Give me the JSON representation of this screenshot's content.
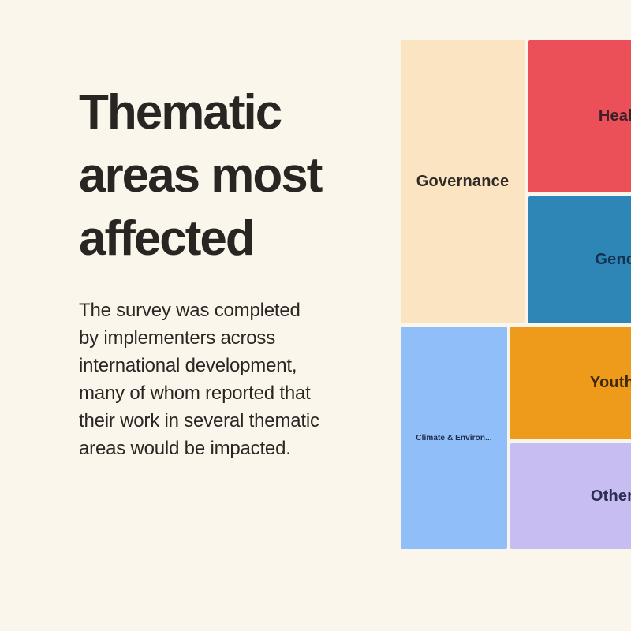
{
  "page": {
    "background_color": "#FAF6EC",
    "text_color": "#292522"
  },
  "intro": {
    "title_lines": [
      "Thematic",
      "areas most",
      "affected"
    ],
    "title_text": "Thematic areas most affected",
    "description_lines": [
      "The survey was completed",
      "by implementers across",
      "international development,",
      "many of whom reported that",
      "their work in several thematic",
      "areas would be impacted."
    ],
    "description_text": "The survey was completed by implementers across international development, many of whom reported that their work in several thematic areas would be impacted."
  },
  "treemap": {
    "tiles": [
      {
        "id": "governance",
        "label": "Governance",
        "color": "#FAE4C1",
        "label_color": "#2E2A26"
      },
      {
        "id": "health",
        "label": "Health",
        "color": "#EB5059",
        "label_color": "#3C2026"
      },
      {
        "id": "gender",
        "label": "Gender",
        "color": "#2D86B5",
        "label_color": "#13314E"
      },
      {
        "id": "climate",
        "label": "Climate & Environ...",
        "color": "#90BEF8",
        "label_color": "#1C2B4A"
      },
      {
        "id": "youth",
        "label": "Youth",
        "color": "#EE9B1B",
        "label_color": "#3E2A08"
      },
      {
        "id": "other",
        "label": "Other",
        "color": "#C7BDF3",
        "label_color": "#2D2B52"
      }
    ]
  },
  "chart_data": {
    "type": "treemap",
    "title": "Thematic areas most affected",
    "items": [
      {
        "label": "Governance",
        "color": "#FAE4C1",
        "area_pct_estimated": 22
      },
      {
        "label": "Health",
        "color": "#EB5059",
        "area_pct_estimated": 18
      },
      {
        "label": "Gender",
        "color": "#2D86B5",
        "area_pct_estimated": 15
      },
      {
        "label": "Climate & Environ...",
        "color": "#90BEF8",
        "area_pct_estimated": 15
      },
      {
        "label": "Youth",
        "color": "#EE9B1B",
        "area_pct_estimated": 15
      },
      {
        "label": "Other",
        "color": "#C7BDF3",
        "area_pct_estimated": 14
      }
    ],
    "layout_hints": {
      "legend": "none",
      "grid": "off",
      "clipped_right_edge": true,
      "rows": [
        [
          "Governance",
          [
            "Health",
            "Gender"
          ]
        ],
        [
          "Climate & Environ...",
          [
            "Youth",
            "Other"
          ]
        ]
      ]
    }
  }
}
